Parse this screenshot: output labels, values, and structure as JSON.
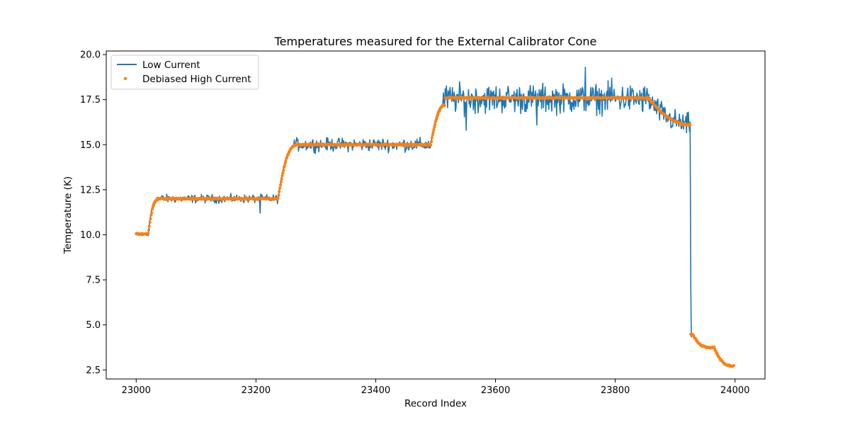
{
  "chart_data": {
    "type": "line",
    "title": "Temperatures measured for the External Calibrator Cone",
    "xlabel": "Record Index",
    "ylabel": "Temperature (K)",
    "xlim": [
      22950,
      24050
    ],
    "ylim": [
      2.0,
      20.2
    ],
    "xticks": [
      23000,
      23200,
      23400,
      23600,
      23800,
      24000
    ],
    "xtick_labels": [
      "23000",
      "23200",
      "23400",
      "23600",
      "23800",
      "24000"
    ],
    "yticks": [
      2.5,
      5.0,
      7.5,
      10.0,
      12.5,
      15.0,
      17.5,
      20.0
    ],
    "ytick_labels": [
      "2.5",
      "5.0",
      "7.5",
      "10.0",
      "12.5",
      "15.0",
      "17.5",
      "20.0"
    ],
    "grid": false,
    "legend_position": "top-left",
    "series": [
      {
        "name": "Low Current",
        "style": "line",
        "color": "#1f77b4",
        "segments": [
          {
            "x_start": 23000,
            "x_end": 23020,
            "level": 10.0,
            "noise": 0.08
          },
          {
            "x_start": 23020,
            "x_end": 23032,
            "ramp_from": 10.0,
            "ramp_to": 11.9
          },
          {
            "x_start": 23032,
            "x_end": 23237,
            "level": 12.0,
            "noise": 0.16
          },
          {
            "x_start": 23237,
            "x_end": 23262,
            "ramp_from": 12.0,
            "ramp_to": 14.9
          },
          {
            "x_start": 23262,
            "x_end": 23492,
            "level": 15.0,
            "noise": 0.25
          },
          {
            "x_start": 23492,
            "x_end": 23512,
            "ramp_from": 15.0,
            "ramp_to": 17.2
          },
          {
            "x_start": 23512,
            "x_end": 23855,
            "level": 17.55,
            "noise": 0.55
          },
          {
            "x_start": 23855,
            "x_end": 23925,
            "ramp_from": 17.5,
            "ramp_to": 16.1,
            "noise": 0.45
          },
          {
            "x_start": 23925,
            "x_end": 23927,
            "ramp_from": 16.1,
            "ramp_to": 4.3
          }
        ],
        "spikes": [
          {
            "x": 23207,
            "y": 11.2
          },
          {
            "x": 23551,
            "y": 15.8
          },
          {
            "x": 23669,
            "y": 16.1
          },
          {
            "x": 23750,
            "y": 19.3
          },
          {
            "x": 23794,
            "y": 18.7
          },
          {
            "x": 23845,
            "y": 16.9
          }
        ]
      },
      {
        "name": "Debiased High Current",
        "style": "scatter",
        "color": "#ff7f0e",
        "segments": [
          {
            "x_start": 23000,
            "x_end": 23020,
            "level": 10.05
          },
          {
            "x_start": 23020,
            "x_end": 23035,
            "ramp_from": 10.0,
            "ramp_to": 11.95
          },
          {
            "x_start": 23035,
            "x_end": 23237,
            "level": 12.0
          },
          {
            "x_start": 23237,
            "x_end": 23265,
            "ramp_from": 12.0,
            "ramp_to": 14.95
          },
          {
            "x_start": 23265,
            "x_end": 23492,
            "level": 15.0
          },
          {
            "x_start": 23492,
            "x_end": 23515,
            "ramp_from": 15.0,
            "ramp_to": 17.2
          },
          {
            "x_start": 23515,
            "x_end": 23855,
            "level": 17.6
          },
          {
            "x_start": 23855,
            "x_end": 23925,
            "ramp_from": 17.6,
            "ramp_to": 16.1
          },
          {
            "x_start": 23926,
            "x_end": 23930,
            "level": 4.45
          },
          {
            "x_start": 23930,
            "x_end": 23950,
            "ramp_from": 4.45,
            "ramp_to": 3.8
          },
          {
            "x_start": 23950,
            "x_end": 23965,
            "level": 3.75
          },
          {
            "x_start": 23965,
            "x_end": 23990,
            "ramp_from": 3.75,
            "ramp_to": 2.75
          },
          {
            "x_start": 23990,
            "x_end": 23998,
            "level": 2.72
          }
        ]
      }
    ]
  }
}
